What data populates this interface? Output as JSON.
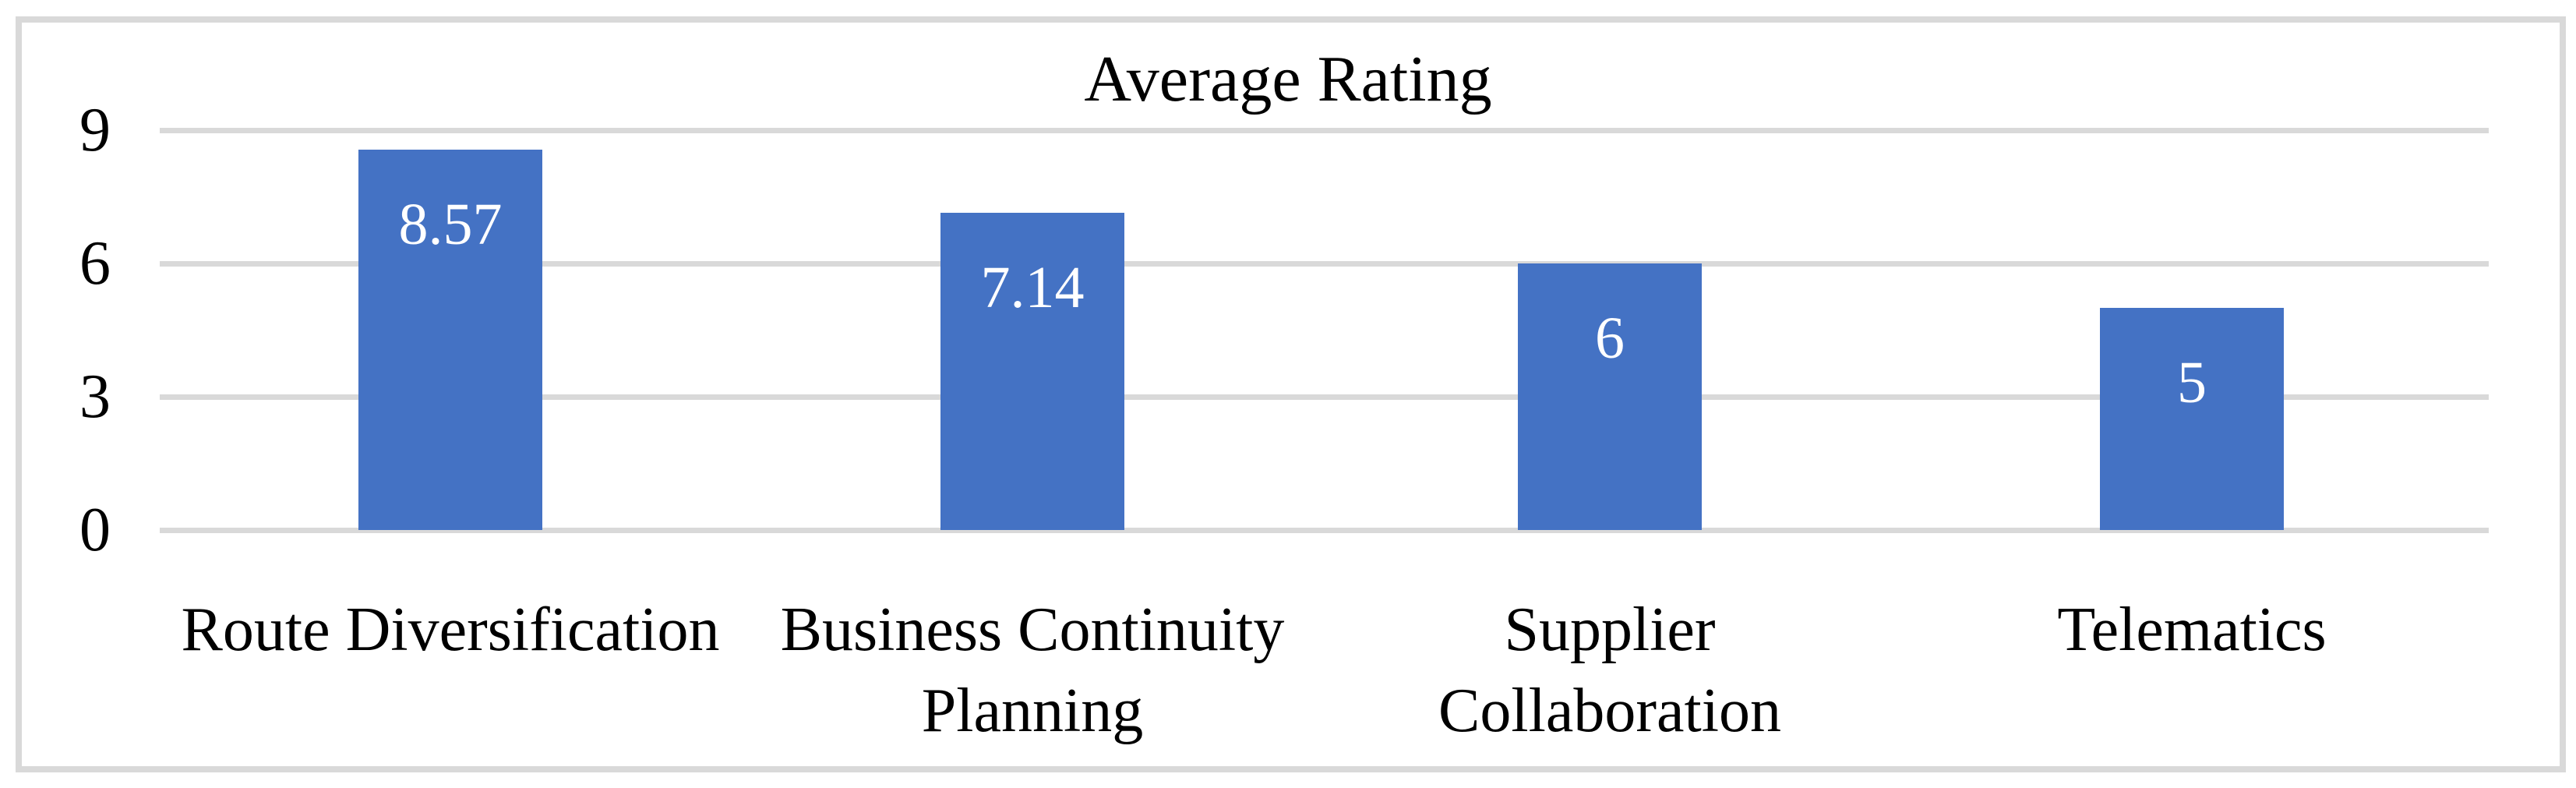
{
  "figure": {
    "background_color": "#FFFFFF",
    "frame_color": "#D9D9D9",
    "text_color": "#000000"
  },
  "chart_data": {
    "type": "bar",
    "title": "Average Rating",
    "categories": [
      "Route Diversification",
      "Business Continuity\nPlanning",
      "Supplier\nCollaboration",
      "Telematics"
    ],
    "values": [
      8.57,
      7.14,
      6,
      5
    ],
    "value_labels": [
      "8.57",
      "7.14",
      "6",
      "5"
    ],
    "xlabel": "",
    "ylabel": "",
    "ylim": [
      0,
      9
    ],
    "y_ticks": [
      9,
      6,
      3,
      0
    ],
    "grid": true,
    "legend_position": "none",
    "bar_color": "#4472C4",
    "value_label_color": "#FFFFFF",
    "gridline_color": "#D9D9D9"
  }
}
